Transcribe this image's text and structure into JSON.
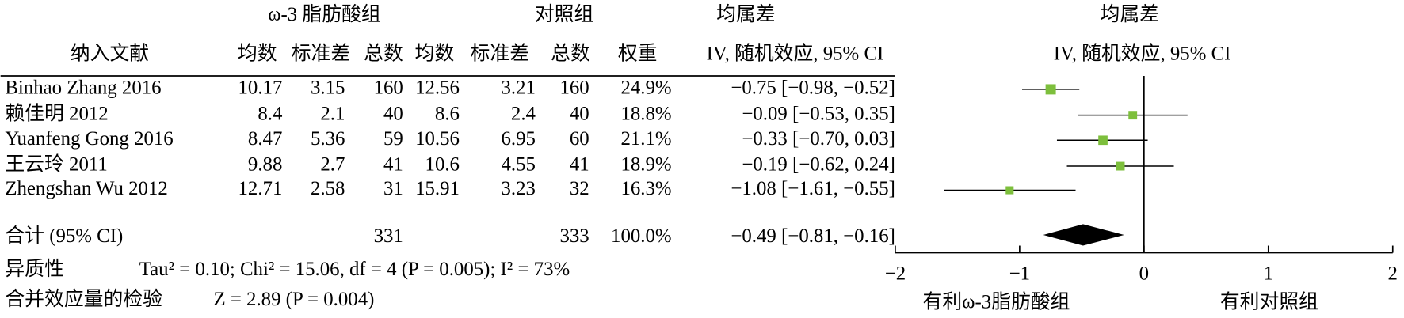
{
  "chart_data": {
    "type": "forest",
    "headers": {
      "study": "纳入文献",
      "group1": "ω-3 脂肪酸组",
      "group2": "对照组",
      "mean1": "均数",
      "sd1": "标准差",
      "n1": "总数",
      "mean2": "均数",
      "sd2": "标准差",
      "n2": "总数",
      "weight": "权重",
      "effect_title": "均属差",
      "effect_method": "IV, 随机效应, 95% CI",
      "plot_title": "均属差",
      "plot_method": "IV, 随机效应, 95% CI"
    },
    "studies": [
      {
        "name": "Binhao Zhang 2016",
        "mean1": 10.17,
        "sd1": 3.15,
        "n1": 160,
        "mean2": 12.56,
        "sd2": 3.21,
        "n2": 160,
        "weight": 24.9,
        "weight_label": "24.9%",
        "md": -0.75,
        "lo": -0.98,
        "hi": -0.52,
        "ci_label": "−0.75 [−0.98, −0.52]"
      },
      {
        "name": "赖佳明  2012",
        "mean1": 8.4,
        "sd1": 2.1,
        "n1": 40,
        "mean2": 8.6,
        "sd2": 2.4,
        "n2": 40,
        "weight": 18.8,
        "weight_label": "18.8%",
        "md": -0.09,
        "lo": -0.53,
        "hi": 0.35,
        "ci_label": "−0.09 [−0.53, 0.35]"
      },
      {
        "name": "Yuanfeng Gong 2016",
        "mean1": 8.47,
        "sd1": 5.36,
        "n1": 59,
        "mean2": 10.56,
        "sd2": 6.95,
        "n2": 60,
        "weight": 21.1,
        "weight_label": "21.1%",
        "md": -0.33,
        "lo": -0.7,
        "hi": 0.03,
        "ci_label": "−0.33 [−0.70, 0.03]"
      },
      {
        "name": "王云玲  2011",
        "mean1": 9.88,
        "sd1": 2.7,
        "n1": 41,
        "mean2": 10.6,
        "sd2": 4.55,
        "n2": 41,
        "weight": 18.9,
        "weight_label": "18.9%",
        "md": -0.19,
        "lo": -0.62,
        "hi": 0.24,
        "ci_label": "−0.19 [−0.62, 0.24]"
      },
      {
        "name": "Zhengshan Wu 2012",
        "mean1": 12.71,
        "sd1": 2.58,
        "n1": 31,
        "mean2": 15.91,
        "sd2": 3.23,
        "n2": 32,
        "weight": 16.3,
        "weight_label": "16.3%",
        "md": -1.08,
        "lo": -1.61,
        "hi": -0.55,
        "ci_label": "−1.08 [−1.61, −0.55]"
      }
    ],
    "summary": {
      "name": "合计  (95% CI)",
      "n1": 331,
      "n2": 333,
      "weight": 100.0,
      "weight_label": "100.0%",
      "md": -0.49,
      "lo": -0.81,
      "hi": -0.16,
      "ci_label": "−0.49 [−0.81, −0.16]"
    },
    "heterogeneity_label": "异质性",
    "heterogeneity": "Tau² = 0.10; Chi² = 15.06, df = 4 (P = 0.005); I² = 73%",
    "test_label": "合并效应量的检验",
    "test": "Z = 2.89 (P = 0.004)",
    "xlim": [
      -2,
      2
    ],
    "xticks": [
      {
        "value": -2,
        "label": "−2"
      },
      {
        "value": -1,
        "label": "−1"
      },
      0,
      1,
      2
    ],
    "x_label_left": "有利ω-3脂肪酸组",
    "x_label_right": "有利对照组",
    "color": "#7dbf3c"
  }
}
